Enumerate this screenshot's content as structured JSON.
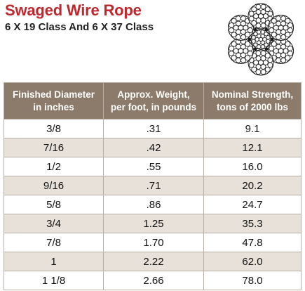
{
  "header": {
    "title": "Swaged Wire Rope",
    "subtitle": "6 X 19 Class And 6 X 37 Class"
  },
  "rope_image": {
    "icon": "wire-rope-cross-section-icon",
    "color": "#1a1a1a"
  },
  "table": {
    "columns": [
      [
        "Finished Diameter",
        "in inches"
      ],
      [
        "Approx. Weight,",
        "per foot, in pounds"
      ],
      [
        "Nominal Strength,",
        "tons of 2000 lbs"
      ]
    ],
    "rows": [
      [
        "3/8",
        ".31",
        "9.1"
      ],
      [
        "7/16",
        ".42",
        "12.1"
      ],
      [
        "1/2",
        ".55",
        "16.0"
      ],
      [
        "9/16",
        ".71",
        "20.2"
      ],
      [
        "5/8",
        ".86",
        "24.7"
      ],
      [
        "3/4",
        "1.25",
        "35.3"
      ],
      [
        "7/8",
        "1.70",
        "47.8"
      ],
      [
        "1",
        "2.22",
        "62.0"
      ],
      [
        "1 1/8",
        "2.66",
        "78.0"
      ]
    ]
  },
  "colors": {
    "title": "#c0272d",
    "header_bg": "#8c7b6b",
    "row_alt_bg": "#e7e1d9"
  }
}
